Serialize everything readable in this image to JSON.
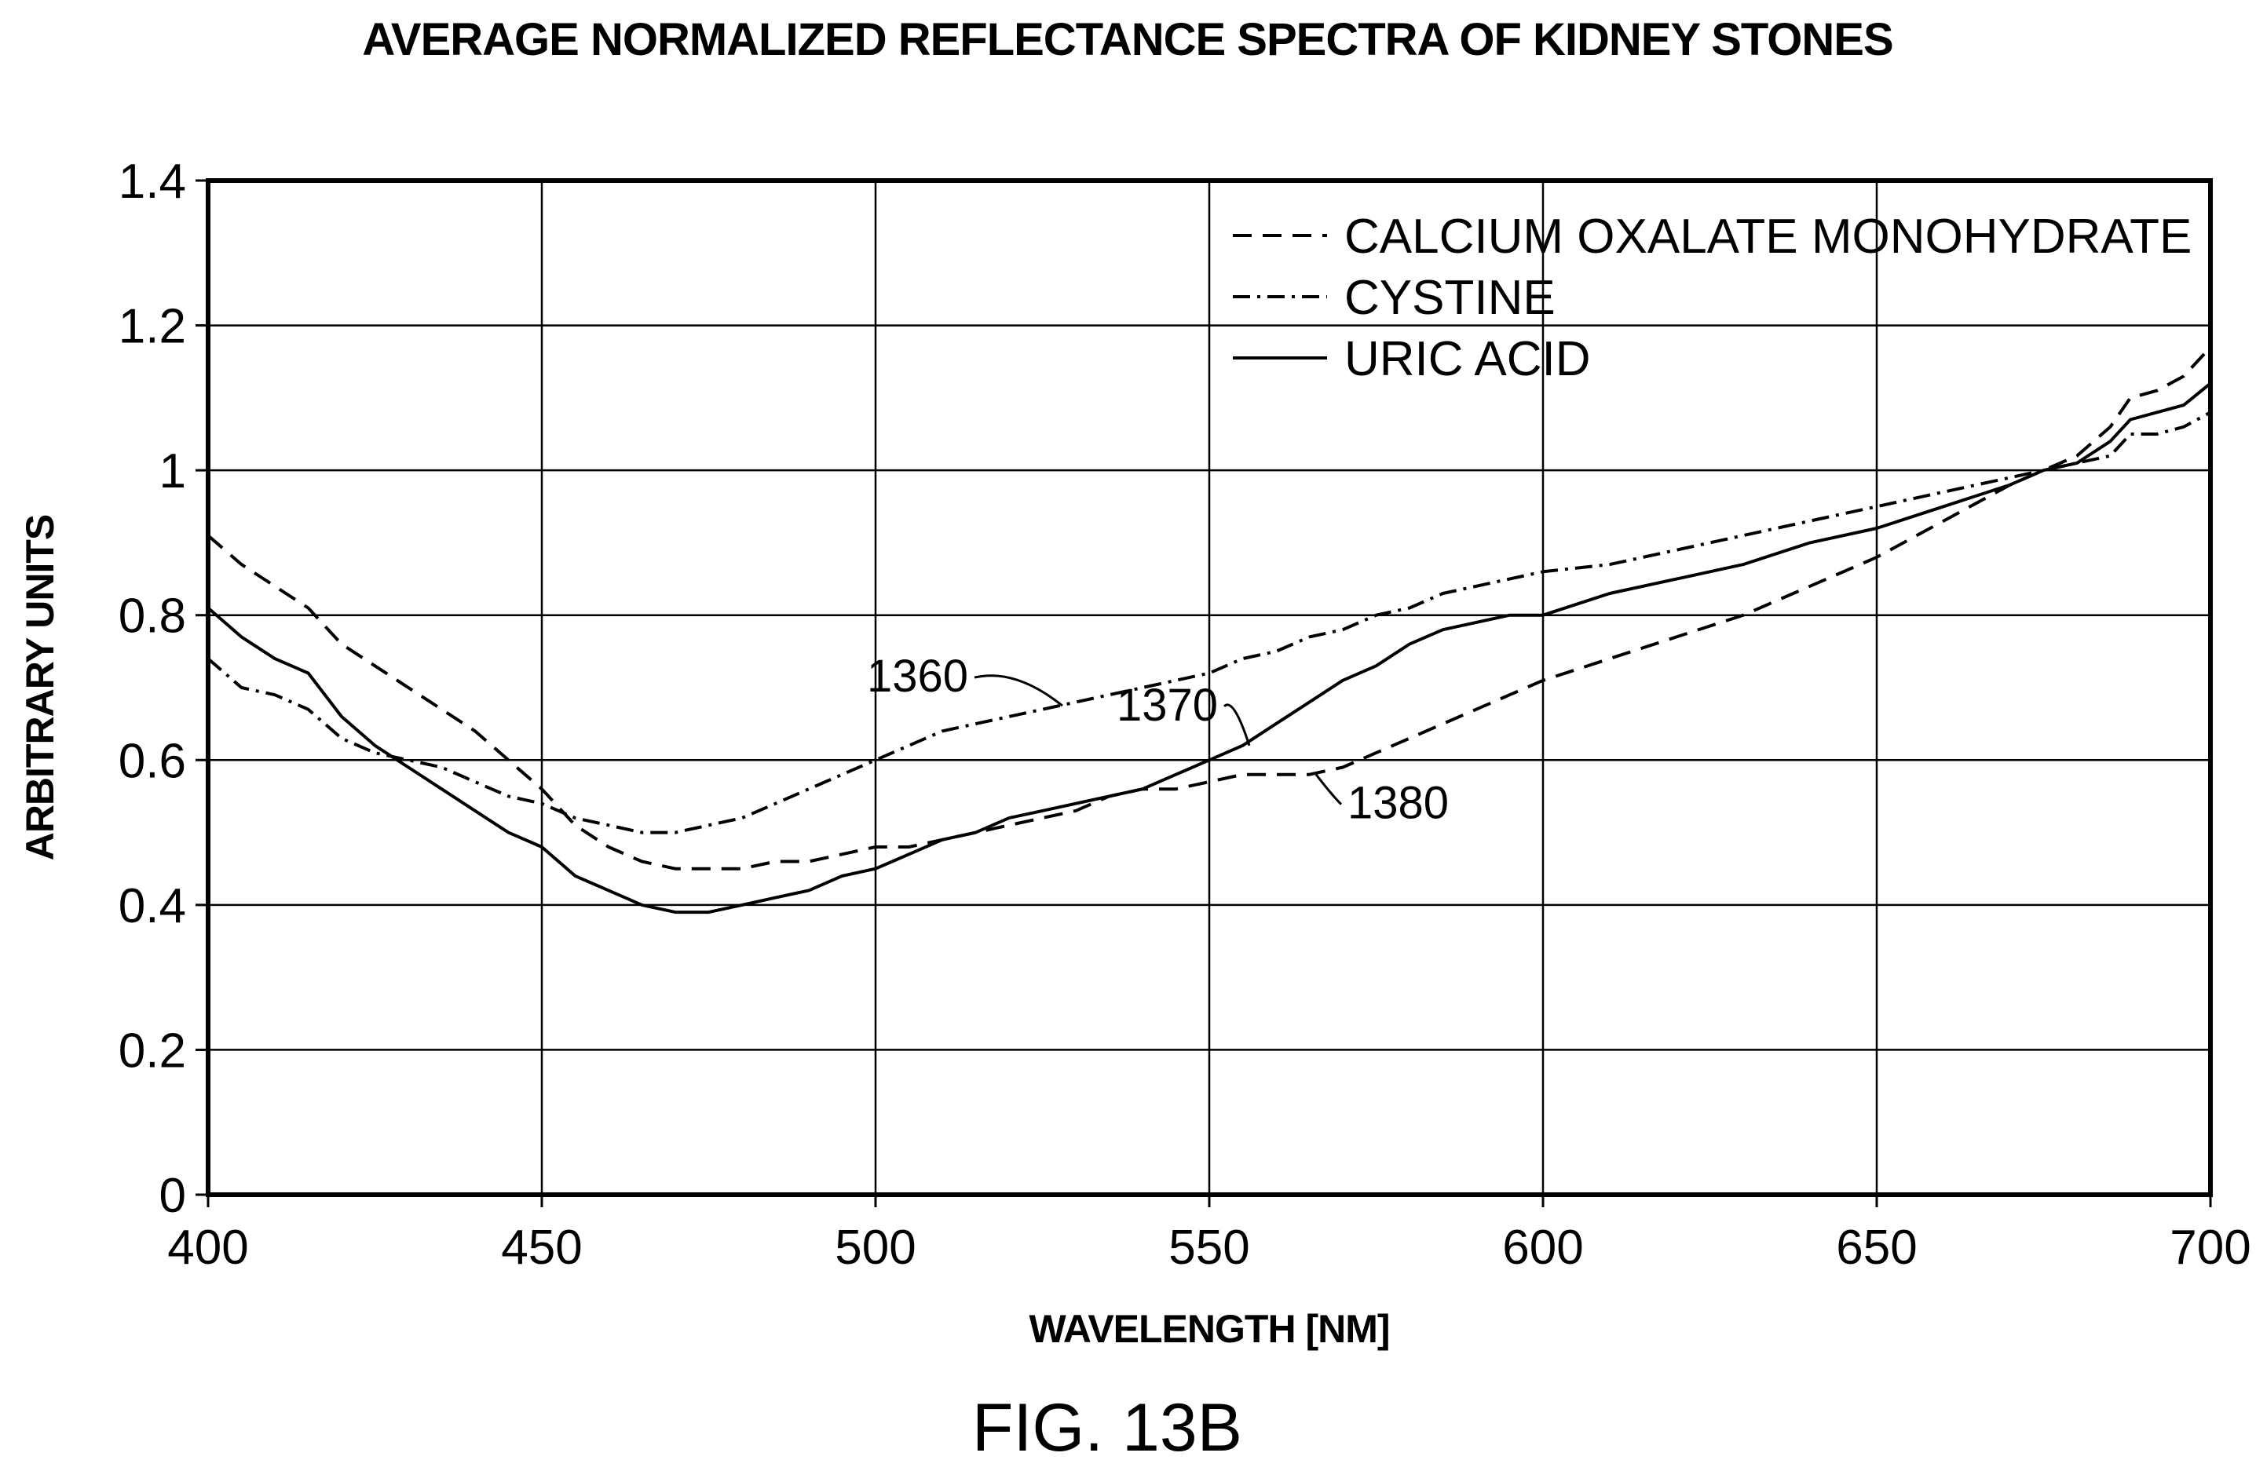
{
  "chart_data": {
    "type": "line",
    "title": "AVERAGE NORMALIZED REFLECTANCE SPECTRA OF KIDNEY STONES",
    "xlabel": "WAVELENGTH [NM]",
    "ylabel": "ARBITRARY UNITS",
    "xlim": [
      400,
      700
    ],
    "ylim": [
      0,
      1.4
    ],
    "xticks": [
      "400",
      "450",
      "500",
      "550",
      "600",
      "650",
      "700"
    ],
    "yticks": [
      "0",
      "0.2",
      "0.4",
      "0.6",
      "0.8",
      "1",
      "1.2",
      "1.4"
    ],
    "grid": true,
    "legend_position": "top-right",
    "caption": "FIG. 13B",
    "series": [
      {
        "name": "CALCIUM OXALATE MONOHYDRATE",
        "style": "dashed",
        "x": [
          400,
          405,
          410,
          415,
          420,
          425,
          430,
          435,
          440,
          445,
          450,
          455,
          460,
          465,
          470,
          475,
          480,
          485,
          490,
          495,
          500,
          505,
          510,
          515,
          520,
          525,
          530,
          535,
          540,
          545,
          550,
          555,
          560,
          565,
          570,
          575,
          580,
          585,
          590,
          595,
          600,
          610,
          620,
          630,
          640,
          650,
          660,
          670,
          675,
          680,
          685,
          688,
          692,
          696,
          700
        ],
        "y": [
          0.91,
          0.87,
          0.84,
          0.81,
          0.76,
          0.73,
          0.7,
          0.67,
          0.64,
          0.6,
          0.56,
          0.51,
          0.48,
          0.46,
          0.45,
          0.45,
          0.45,
          0.46,
          0.46,
          0.47,
          0.48,
          0.48,
          0.49,
          0.5,
          0.51,
          0.52,
          0.53,
          0.55,
          0.56,
          0.56,
          0.57,
          0.58,
          0.58,
          0.58,
          0.59,
          0.61,
          0.63,
          0.65,
          0.67,
          0.69,
          0.71,
          0.74,
          0.77,
          0.8,
          0.84,
          0.88,
          0.93,
          0.98,
          1.0,
          1.02,
          1.06,
          1.1,
          1.11,
          1.13,
          1.17
        ]
      },
      {
        "name": "CYSTINE",
        "style": "dashdot",
        "x": [
          400,
          405,
          410,
          415,
          420,
          425,
          430,
          435,
          440,
          445,
          450,
          455,
          460,
          465,
          470,
          475,
          480,
          485,
          490,
          495,
          500,
          505,
          510,
          515,
          520,
          525,
          530,
          535,
          540,
          545,
          550,
          555,
          560,
          565,
          570,
          575,
          580,
          585,
          590,
          595,
          600,
          610,
          620,
          630,
          640,
          650,
          660,
          670,
          675,
          680,
          685,
          688,
          692,
          696,
          700
        ],
        "y": [
          0.74,
          0.7,
          0.69,
          0.67,
          0.63,
          0.61,
          0.6,
          0.59,
          0.57,
          0.55,
          0.54,
          0.52,
          0.51,
          0.5,
          0.5,
          0.51,
          0.52,
          0.54,
          0.56,
          0.58,
          0.6,
          0.62,
          0.64,
          0.65,
          0.66,
          0.67,
          0.68,
          0.69,
          0.7,
          0.71,
          0.72,
          0.74,
          0.75,
          0.77,
          0.78,
          0.8,
          0.81,
          0.83,
          0.84,
          0.85,
          0.86,
          0.87,
          0.89,
          0.91,
          0.93,
          0.95,
          0.97,
          0.99,
          1.0,
          1.01,
          1.02,
          1.05,
          1.05,
          1.06,
          1.08
        ]
      },
      {
        "name": "URIC ACID",
        "style": "solid",
        "x": [
          400,
          405,
          410,
          415,
          420,
          425,
          430,
          435,
          440,
          445,
          450,
          455,
          460,
          465,
          470,
          475,
          480,
          485,
          490,
          495,
          500,
          505,
          510,
          515,
          520,
          525,
          530,
          535,
          540,
          545,
          550,
          555,
          560,
          565,
          570,
          575,
          580,
          585,
          590,
          595,
          600,
          610,
          620,
          630,
          640,
          650,
          660,
          670,
          675,
          680,
          685,
          688,
          692,
          696,
          700
        ],
        "y": [
          0.81,
          0.77,
          0.74,
          0.72,
          0.66,
          0.62,
          0.59,
          0.56,
          0.53,
          0.5,
          0.48,
          0.44,
          0.42,
          0.4,
          0.39,
          0.39,
          0.4,
          0.41,
          0.42,
          0.44,
          0.45,
          0.47,
          0.49,
          0.5,
          0.52,
          0.53,
          0.54,
          0.55,
          0.56,
          0.58,
          0.6,
          0.62,
          0.65,
          0.68,
          0.71,
          0.73,
          0.76,
          0.78,
          0.79,
          0.8,
          0.8,
          0.83,
          0.85,
          0.87,
          0.9,
          0.92,
          0.95,
          0.98,
          1.0,
          1.01,
          1.04,
          1.07,
          1.08,
          1.09,
          1.12
        ]
      }
    ],
    "annotations": [
      {
        "text": "1360",
        "series": "CYSTINE",
        "x": 528,
        "y": 0.675
      },
      {
        "text": "1370",
        "series": "URIC ACID",
        "x": 556,
        "y": 0.62
      },
      {
        "text": "1380",
        "series": "CALCIUM OXALATE MONOHYDRATE",
        "x": 566,
        "y": 0.58
      }
    ]
  }
}
